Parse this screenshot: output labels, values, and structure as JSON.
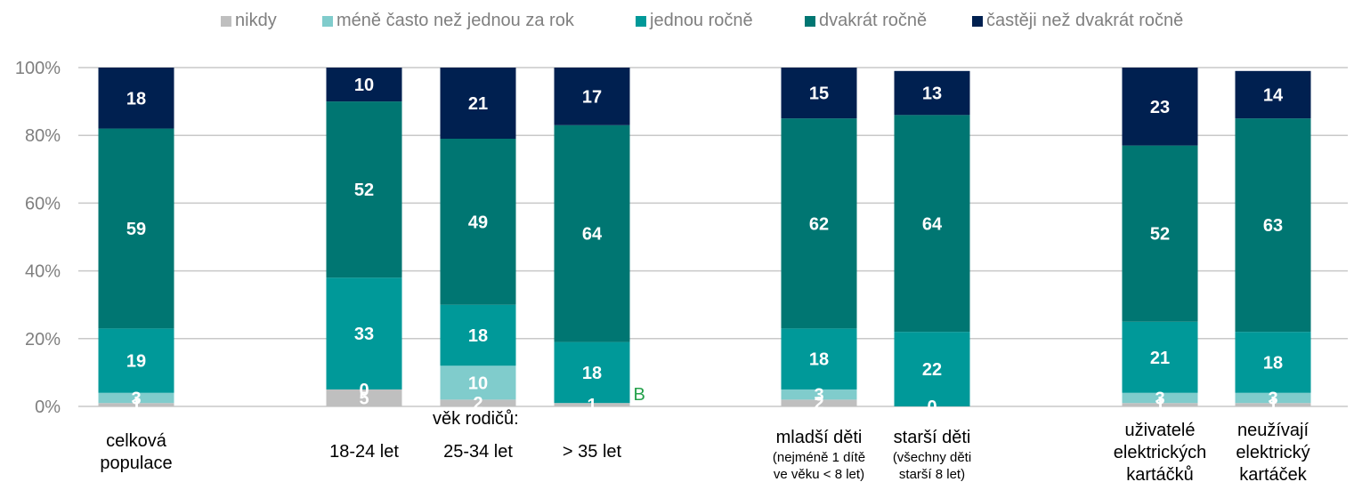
{
  "chart_data": {
    "type": "bar",
    "stacked": true,
    "percent": true,
    "title": "",
    "xlabel": "",
    "ylabel": "",
    "ylim": [
      0,
      100
    ],
    "yticks": [
      "0%",
      "20%",
      "40%",
      "60%",
      "80%",
      "100%"
    ],
    "grid": true,
    "legend_position": "top",
    "categories": [
      {
        "label": "celková populace",
        "lines": [
          "celková",
          "populace"
        ],
        "sub": []
      },
      {
        "label": "18-24 let",
        "lines": [
          "18-24 let"
        ],
        "sub": []
      },
      {
        "label": "25-34 let",
        "lines": [
          "25-34 let"
        ],
        "sub": []
      },
      {
        "label": "> 35 let",
        "lines": [
          "> 35 let"
        ],
        "sub": []
      },
      {
        "label": "mladší děti",
        "lines": [
          "mladší děti"
        ],
        "sub": [
          "(nejméně 1 dítě",
          "ve věku < 8 let)"
        ]
      },
      {
        "label": "starší děti",
        "lines": [
          "starší děti"
        ],
        "sub": [
          "(všechny děti",
          "starší 8 let)"
        ]
      },
      {
        "label": "uživatelé elektrických kartáčků",
        "lines": [
          "uživatelé",
          "elektrických",
          "kartáčků"
        ],
        "sub": []
      },
      {
        "label": "neužívají elektrický kartáček",
        "lines": [
          "neužívají",
          "elektrický",
          "kartáček"
        ],
        "sub": []
      }
    ],
    "group_label": "věk rodičů:",
    "annotation": {
      "text": "B",
      "category_index": 3,
      "color": "#23a04a"
    },
    "series": [
      {
        "name": "nikdy",
        "color": "#bfbfbf",
        "values": [
          1,
          5,
          2,
          1,
          2,
          0,
          1,
          1
        ]
      },
      {
        "name": "méně často než jednou za rok",
        "color": "#80cccc",
        "values": [
          3,
          0,
          10,
          0,
          3,
          0,
          3,
          3
        ]
      },
      {
        "name": "jednou ročně",
        "color": "#009999",
        "values": [
          19,
          33,
          18,
          18,
          18,
          22,
          21,
          18
        ]
      },
      {
        "name": "dvakrát ročně",
        "color": "#007672",
        "values": [
          59,
          52,
          49,
          64,
          62,
          64,
          52,
          63
        ]
      },
      {
        "name": "častěji než dvakrát ročně",
        "color": "#002050",
        "values": [
          18,
          10,
          21,
          17,
          15,
          13,
          23,
          14
        ]
      }
    ]
  }
}
